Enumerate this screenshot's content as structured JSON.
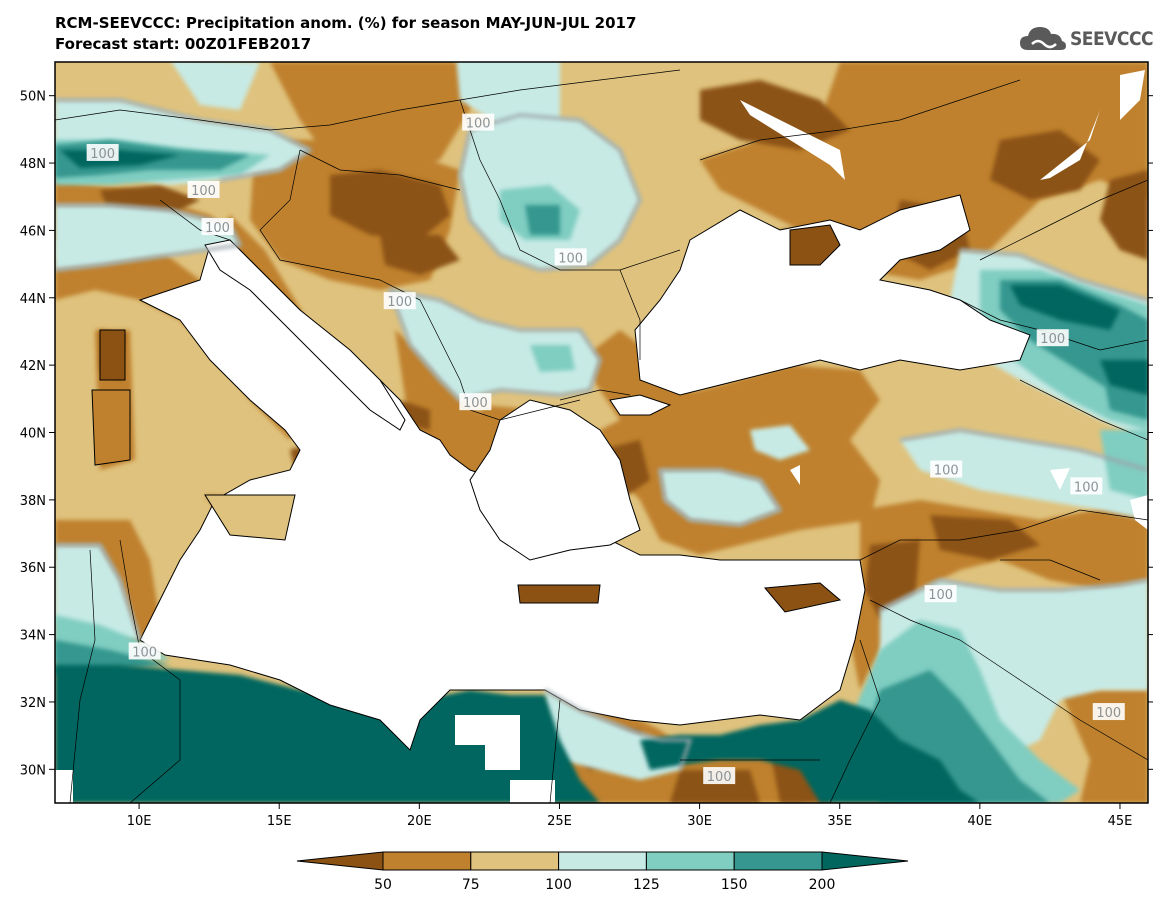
{
  "header": {
    "title_line1": "RCM-SEEVCCC: Precipitation anom. (%) for season MAY-JUN-JUL 2017",
    "title_line2": "Forecast start: 00Z01FEB2017"
  },
  "logo": {
    "text": "SEEVCCC",
    "icon": "cloud-icon"
  },
  "map": {
    "lon_range": [
      7,
      46
    ],
    "lat_range": [
      29,
      51
    ],
    "x_ticks": [
      "10E",
      "15E",
      "20E",
      "25E",
      "30E",
      "35E",
      "40E",
      "45E"
    ],
    "x_tick_values": [
      10,
      15,
      20,
      25,
      30,
      35,
      40,
      45
    ],
    "y_ticks": [
      "30N",
      "32N",
      "34N",
      "36N",
      "38N",
      "40N",
      "42N",
      "44N",
      "46N",
      "48N",
      "50N"
    ],
    "y_tick_values": [
      30,
      32,
      34,
      36,
      38,
      40,
      42,
      44,
      46,
      48,
      50
    ],
    "contour_label": "100",
    "contour_labels": [
      {
        "text": "100",
        "lon": 22.1,
        "lat": 49.2
      },
      {
        "text": "100",
        "lon": 8.7,
        "lat": 48.3
      },
      {
        "text": "100",
        "lon": 12.3,
        "lat": 47.2
      },
      {
        "text": "100",
        "lon": 12.8,
        "lat": 46.1
      },
      {
        "text": "100",
        "lon": 25.4,
        "lat": 45.2
      },
      {
        "text": "100",
        "lon": 19.3,
        "lat": 43.9
      },
      {
        "text": "100",
        "lon": 22.0,
        "lat": 40.9
      },
      {
        "text": "100",
        "lon": 42.6,
        "lat": 42.8
      },
      {
        "text": "100",
        "lon": 38.8,
        "lat": 38.9
      },
      {
        "text": "100",
        "lon": 43.8,
        "lat": 38.4
      },
      {
        "text": "100",
        "lon": 38.6,
        "lat": 35.2
      },
      {
        "text": "100",
        "lon": 10.2,
        "lat": 33.5
      },
      {
        "text": "100",
        "lon": 44.6,
        "lat": 31.7
      },
      {
        "text": "100",
        "lon": 30.7,
        "lat": 29.8
      }
    ]
  },
  "colorbar": {
    "labels": [
      "50",
      "75",
      "100",
      "125",
      "150",
      "200"
    ],
    "colors": [
      "#8c5214",
      "#bf812d",
      "#dfc27d",
      "#c7eae5",
      "#80cdc1",
      "#35978f",
      "#01665e"
    ]
  }
}
